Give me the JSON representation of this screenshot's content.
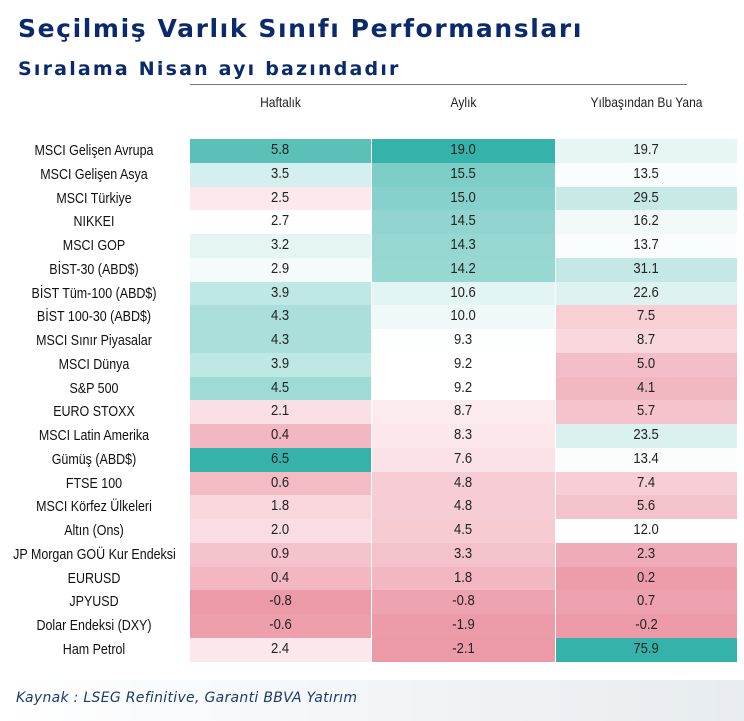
{
  "title": "Seçilmiş Varlık Sınıfı Performansları",
  "subtitle": "Sıralama Nisan ayı bazındadır",
  "source": "Kaynak : LSEG Refinitive, Garanti BBVA Yatırım",
  "colors": {
    "title": "#0a2a6b",
    "negative_strong": "#ec9aa8",
    "negative_light": "#fdeef0",
    "positive_light": "#eef9f9",
    "positive_strong": "#2aaea4"
  },
  "chart_data": {
    "type": "table",
    "title": "Seçilmiş Varlık Sınıfı Performansları",
    "subtitle": "Sıralama Nisan ayı bazındadır",
    "columns": [
      "Haftalık",
      "Aylık",
      "Yılbaşından Bu Yana"
    ],
    "rows": [
      {
        "label": "MSCI Gelişen Avrupa",
        "values": [
          "5.8",
          "19.0",
          "19.7"
        ]
      },
      {
        "label": "MSCI Gelişen Asya",
        "values": [
          "3.5",
          "15.5",
          "13.5"
        ]
      },
      {
        "label": "MSCI Türkiye",
        "values": [
          "2.5",
          "15.0",
          "29.5"
        ]
      },
      {
        "label": "NIKKEI",
        "values": [
          "2.7",
          "14.5",
          "16.2"
        ]
      },
      {
        "label": "MSCI GOP",
        "values": [
          "3.2",
          "14.3",
          "13.7"
        ]
      },
      {
        "label": "BİST-30 (ABD$)",
        "values": [
          "2.9",
          "14.2",
          "31.1"
        ]
      },
      {
        "label": "BİST Tüm-100 (ABD$)",
        "values": [
          "3.9",
          "10.6",
          "22.6"
        ]
      },
      {
        "label": "BİST 100-30 (ABD$)",
        "values": [
          "4.3",
          "10.0",
          "7.5"
        ]
      },
      {
        "label": "MSCI Sınır Piyasalar",
        "values": [
          "4.3",
          "9.3",
          "8.7"
        ]
      },
      {
        "label": "MSCI Dünya",
        "values": [
          "3.9",
          "9.2",
          "5.0"
        ]
      },
      {
        "label": "S&P 500",
        "values": [
          "4.5",
          "9.2",
          "4.1"
        ]
      },
      {
        "label": "EURO STOXX",
        "values": [
          "2.1",
          "8.7",
          "5.7"
        ]
      },
      {
        "label": "MSCI Latin Amerika",
        "values": [
          "0.4",
          "8.3",
          "23.5"
        ]
      },
      {
        "label": "Gümüş (ABD$)",
        "values": [
          "6.5",
          "7.6",
          "13.4"
        ]
      },
      {
        "label": "FTSE 100",
        "values": [
          "0.6",
          "4.8",
          "7.4"
        ]
      },
      {
        "label": "MSCI Körfez Ülkeleri",
        "values": [
          "1.8",
          "4.8",
          "5.6"
        ]
      },
      {
        "label": "Altın (Ons)",
        "values": [
          "2.0",
          "4.5",
          "12.0"
        ]
      },
      {
        "label": "JP Morgan GOÜ Kur Endeksi",
        "values": [
          "0.9",
          "3.3",
          "2.3"
        ]
      },
      {
        "label": "EURUSD",
        "values": [
          "0.4",
          "1.8",
          "0.2"
        ]
      },
      {
        "label": "JPYUSD",
        "values": [
          "-0.8",
          "-0.8",
          "0.7"
        ]
      },
      {
        "label": "Dolar Endeksi (DXY)",
        "values": [
          "-0.6",
          "-1.9",
          "-0.2"
        ]
      },
      {
        "label": "Ham Petrol",
        "values": [
          "2.4",
          "-2.1",
          "75.9"
        ]
      }
    ]
  }
}
